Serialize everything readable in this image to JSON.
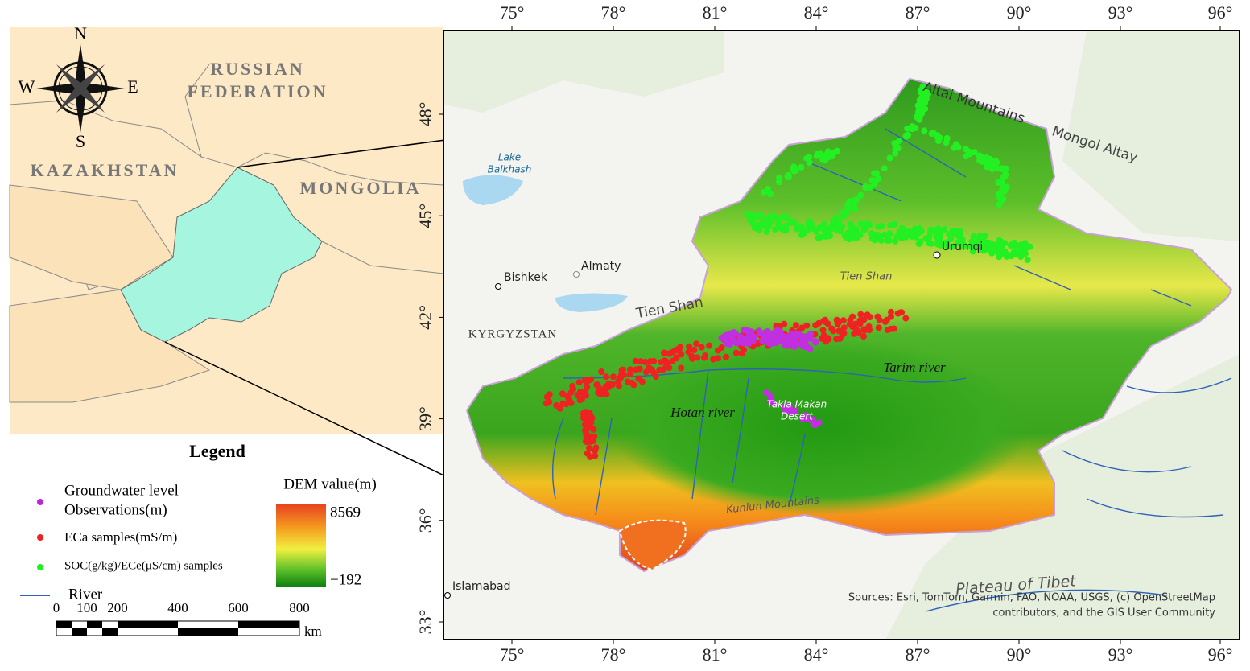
{
  "inset": {
    "russia": [
      "RUSSIAN",
      "FEDERATION"
    ],
    "kazakhstan": "KAZAKHSTAN",
    "mongolia": "MONGOLIA"
  },
  "compass": {
    "n": "N",
    "s": "S",
    "e": "E",
    "w": "W"
  },
  "legend": {
    "title": "Legend",
    "items": [
      [
        "Groundwater level",
        "Observations(m)"
      ],
      [
        "ECa samples(mS/m)"
      ],
      [
        "SOC(g/kg)/ECe(μS/cm) samples"
      ]
    ],
    "river": "River"
  },
  "dem": {
    "title": "DEM value(m)",
    "max": "8569",
    "min": "−192"
  },
  "scale_bar": {
    "labels": [
      "0",
      "100",
      "200",
      "400",
      "600",
      "800"
    ],
    "unit": "km"
  },
  "map": {
    "lon_labels": [
      "75°",
      "78°",
      "81°",
      "84°",
      "87°",
      "90°",
      "93°",
      "96°"
    ],
    "lat_labels": [
      "48°",
      "45°",
      "42°",
      "39°",
      "36°",
      "33°"
    ],
    "places": {
      "altai": "Altai Mountains",
      "mongol_altay": "Mongol Altay",
      "lake": [
        "Lake",
        "Balkhash"
      ],
      "urumqi": "Urumqi",
      "bishkek": "Bishkek",
      "almaty": "Almaty",
      "tien_shan_big": "Tien Shan",
      "tien_shan_small": "Tien Shan",
      "kyrgyzstan": "KYRGYZSTAN",
      "tarim": "Tarim river",
      "hotan": "Hotan river",
      "takla": [
        "Takla Makan",
        "Desert"
      ],
      "kunlun": "Kunlun Mountains",
      "tibet": "Plateau of Tibet",
      "islamabad": "Islamabad"
    },
    "sources": [
      "Sources:  Esri, TomTom, Garmin, FAO, NOAA, USGS, (c) OpenStreetMap",
      "contributors, and the GIS User Community"
    ]
  }
}
